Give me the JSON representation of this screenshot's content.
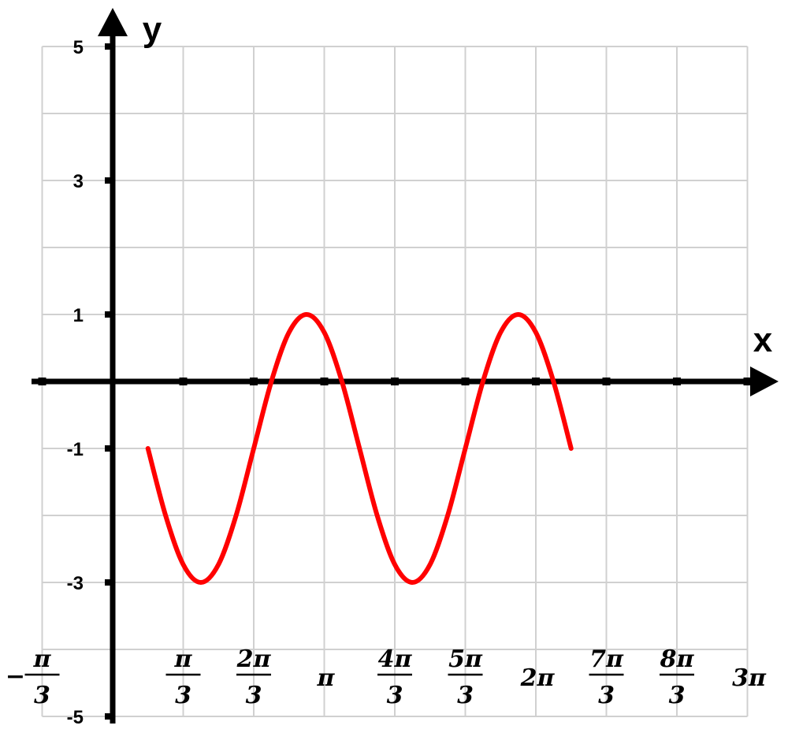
{
  "chart_data": {
    "type": "line",
    "title": "",
    "xlabel": "x",
    "ylabel": "y",
    "xlim": [
      -1.0472,
      9.4248
    ],
    "ylim": [
      -5,
      5
    ],
    "grid": true,
    "x_ticks": [
      {
        "value": -1.0472,
        "sign": "−",
        "num": "π",
        "den": "3"
      },
      {
        "value": 1.0472,
        "num": "π",
        "den": "3"
      },
      {
        "value": 2.0944,
        "num": "2π",
        "den": "3"
      },
      {
        "value": 3.1416,
        "label": "π"
      },
      {
        "value": 4.1888,
        "num": "4π",
        "den": "3"
      },
      {
        "value": 5.236,
        "num": "5π",
        "den": "3"
      },
      {
        "value": 6.2832,
        "label": "2π"
      },
      {
        "value": 7.3304,
        "num": "7π",
        "den": "3"
      },
      {
        "value": 8.3776,
        "num": "8π",
        "den": "3"
      },
      {
        "value": 9.4248,
        "label": "3π"
      }
    ],
    "y_ticks": [
      {
        "value": 5,
        "label": "5"
      },
      {
        "value": 3,
        "label": "3"
      },
      {
        "value": 1,
        "label": "1"
      },
      {
        "value": -1,
        "label": "-1"
      },
      {
        "value": -3,
        "label": "-3"
      },
      {
        "value": -5,
        "label": "-5"
      }
    ],
    "series": [
      {
        "color": "#ff0000",
        "x": [
          0.5236,
          0.7854,
          1.0472,
          1.309,
          1.5708,
          1.8326,
          2.0944,
          2.3562,
          2.618,
          2.8798,
          3.1416,
          3.4034,
          3.6652,
          3.927,
          4.1888,
          4.4506,
          4.7124,
          4.9742,
          5.236,
          5.4978,
          5.7596,
          6.0214,
          6.2832,
          6.545,
          6.8068
        ],
        "y": [
          -1.0,
          -2.0,
          -2.732,
          -3.0,
          -2.732,
          -2.0,
          -1.0,
          0.0,
          0.732,
          1.0,
          0.732,
          0.0,
          -1.0,
          -2.0,
          -2.732,
          -3.0,
          -2.732,
          -2.0,
          -1.0,
          0.0,
          0.732,
          1.0,
          0.732,
          0.0,
          -1.0
        ]
      }
    ]
  }
}
